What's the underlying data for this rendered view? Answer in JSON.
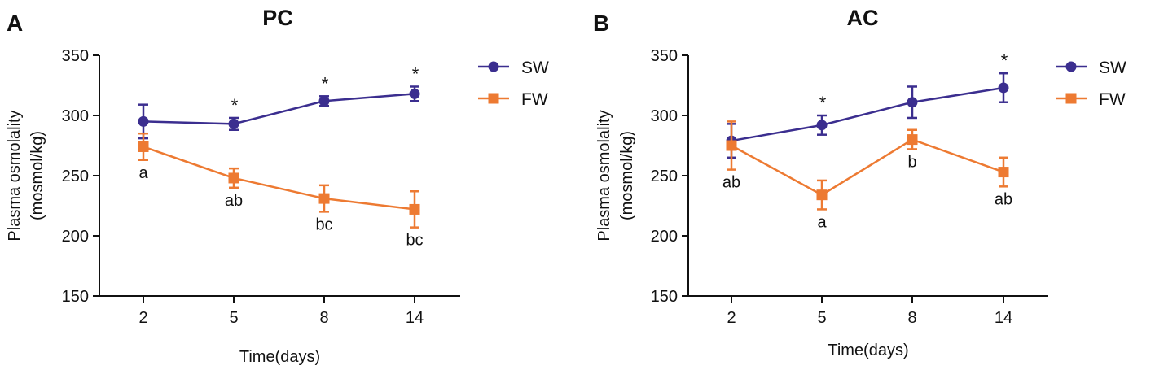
{
  "colors": {
    "SW": "#3b2e8f",
    "FW": "#ed7a32",
    "axis": "#111111"
  },
  "chart_data": [
    {
      "type": "line",
      "panel": "A",
      "title": "PC",
      "xlabel": "Time(days)",
      "ylabel": [
        "Plasma osmolality",
        "(mosmol/kg)"
      ],
      "categories": [
        "2",
        "5",
        "8",
        "14"
      ],
      "ylim": [
        150,
        350
      ],
      "yticks": [
        "150",
        "200",
        "250",
        "300",
        "350"
      ],
      "legend": "top-right",
      "series": [
        {
          "name": "SW",
          "marker": "circle",
          "values": [
            295,
            293,
            312,
            318
          ],
          "err": [
            14,
            5,
            4,
            6
          ],
          "labels": [
            "",
            "*",
            "*",
            "*"
          ]
        },
        {
          "name": "FW",
          "marker": "square",
          "values": [
            274,
            248,
            231,
            222
          ],
          "err": [
            11,
            8,
            11,
            15
          ],
          "labels": [
            "a",
            "ab",
            "bc",
            "bc"
          ]
        }
      ]
    },
    {
      "type": "line",
      "panel": "B",
      "title": "AC",
      "xlabel": "Time(days)",
      "ylabel": [
        "Plasma osmolality",
        "(mosmol/kg)"
      ],
      "categories": [
        "2",
        "5",
        "8",
        "14"
      ],
      "ylim": [
        150,
        350
      ],
      "yticks": [
        "150",
        "200",
        "250",
        "300",
        "350"
      ],
      "legend": "top-right",
      "series": [
        {
          "name": "SW",
          "marker": "circle",
          "values": [
            279,
            292,
            311,
            323
          ],
          "err": [
            14,
            8,
            13,
            12
          ],
          "labels": [
            "",
            "*",
            "",
            "*"
          ]
        },
        {
          "name": "FW",
          "marker": "square",
          "values": [
            275,
            234,
            280,
            253
          ],
          "err": [
            20,
            12,
            8,
            12
          ],
          "labels": [
            "ab",
            "a",
            "b",
            "ab"
          ]
        }
      ]
    }
  ]
}
